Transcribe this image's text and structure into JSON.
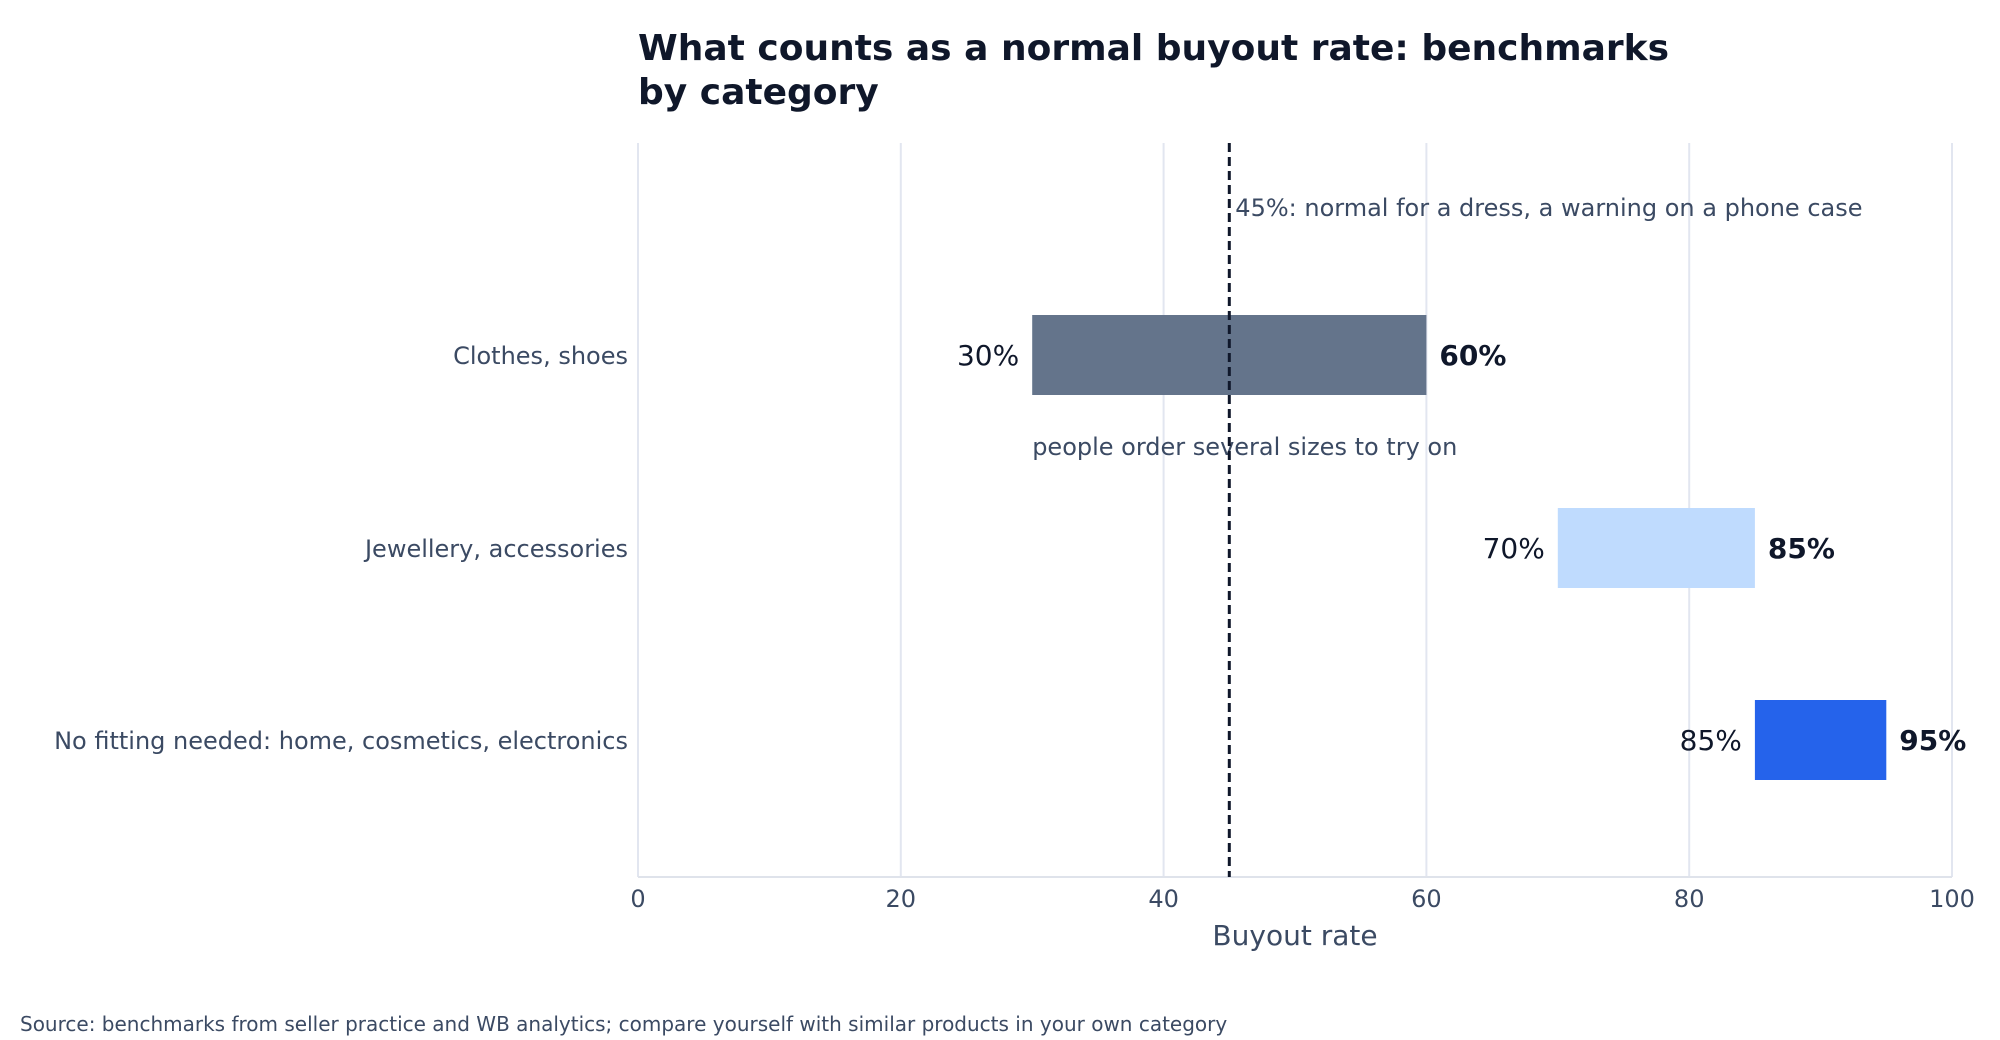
{
  "chart_data": {
    "type": "bar",
    "orientation": "horizontal-range",
    "title_lines": [
      "What counts as a normal buyout rate: benchmarks",
      "by category"
    ],
    "xlabel": "Buyout rate",
    "xlim": [
      0,
      100
    ],
    "xticks": [
      0,
      20,
      40,
      60,
      80,
      100
    ],
    "grid": "vertical",
    "categories": [
      "Clothes, shoes",
      "Jewellery, accessories",
      "No fitting needed: home, cosmetics, electronics"
    ],
    "ranges": [
      {
        "low": 30,
        "high": 60,
        "low_label": "30%",
        "high_label": "60%",
        "color": "#64748b",
        "note": "people order several sizes to try on"
      },
      {
        "low": 70,
        "high": 85,
        "low_label": "70%",
        "high_label": "85%",
        "color": "#bfdbfe",
        "note": ""
      },
      {
        "low": 85,
        "high": 95,
        "low_label": "85%",
        "high_label": "95%",
        "color": "#2563eb",
        "note": ""
      }
    ],
    "reference_line": {
      "value": 45,
      "label": "45%: normal for a dress, a warning on a phone case",
      "color": "#0f172a",
      "style": "dashed"
    },
    "source": "Source: benchmarks from seller practice and WB analytics; compare yourself with similar products in your own category"
  }
}
